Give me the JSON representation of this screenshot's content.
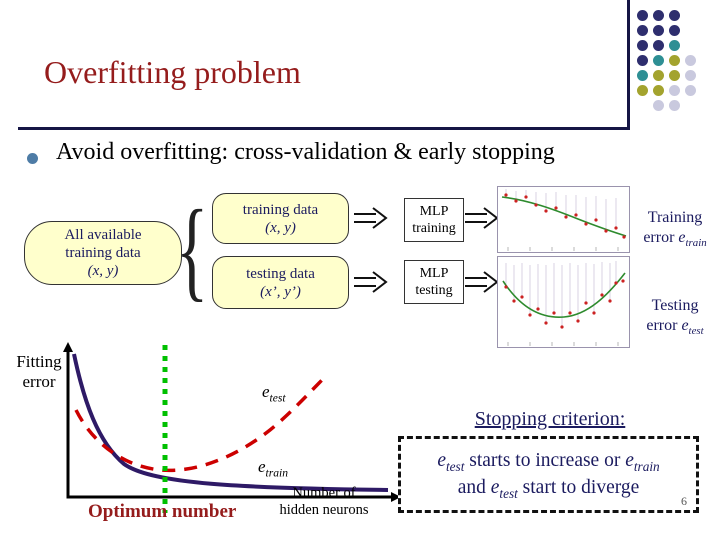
{
  "colors": {
    "title_red": "#951C1C",
    "navy_text": "#1B1B5F",
    "box_fill": "#FFFFCC",
    "line_dark": "#161645",
    "bullet_blue": "#4E7CA6",
    "train_curve": "#2E1A66",
    "red_curve": "#CC0000",
    "green_line": "#00C000",
    "dot_navy": "#2E2E6E",
    "dot_teal": "#2E8F94",
    "dot_olive": "#A3A32E",
    "dot_lavender": "#C9C9DE"
  },
  "decor": {
    "dot_rows": [
      "nnn.",
      "nnn.",
      "nnt.",
      "ntol",
      "tool",
      "ooll",
      ".ll."
    ]
  },
  "header": {
    "title": "Overfitting problem"
  },
  "bullet": {
    "text": "Avoid overfitting: cross-validation & early stopping"
  },
  "flow": {
    "source_line1": "All available",
    "source_line2": "training data",
    "source_line3": "(x, y)",
    "brace": "{",
    "train_box_line1": "training data",
    "train_box_line2": "(x, y)",
    "test_box_line1": "testing data",
    "test_box_line2": "(x’, y’)",
    "mlp_train_line1": "MLP",
    "mlp_train_line2": "training",
    "mlp_test_line1": "MLP",
    "mlp_test_line2": "testing",
    "train_err_line1": "Training",
    "train_err_word": "error ",
    "test_err_line1": "Testing",
    "test_err_word": "error ",
    "e": "e",
    "sub_train": "train",
    "sub_test": "test"
  },
  "chart": {
    "ylabel1": "Fitting",
    "ylabel2": "error",
    "xlabel1": "Number of",
    "xlabel2": "hidden neurons",
    "optimum": "Optimum number",
    "e": "e",
    "sub_train": "train",
    "sub_test": "test"
  },
  "chart_data": {
    "type": "line",
    "title": "",
    "xlabel": "Number of hidden neurons",
    "ylabel": "Fitting error",
    "axis_ticks": "none (conceptual sketch, no numeric scale)",
    "series": [
      {
        "name": "e_train",
        "style": "solid",
        "color": "#2E1A66",
        "trend": "monotonically decreasing, flattens out at high neuron counts"
      },
      {
        "name": "e_test",
        "style": "dashed",
        "color": "#CC0000",
        "trend": "decreases then increases (U-shape); minimum at optimum number of hidden neurons"
      }
    ],
    "annotations": [
      "green dotted vertical line marks Optimum number at the e_test minimum"
    ]
  },
  "stopping": {
    "heading": "Stopping criterion:",
    "e": "e",
    "sub_test": "test",
    "sub_train": "train",
    "t1": " starts to increase or ",
    "t2": "and ",
    "t3": " start to diverge"
  },
  "footer": {
    "page_number": "6"
  }
}
